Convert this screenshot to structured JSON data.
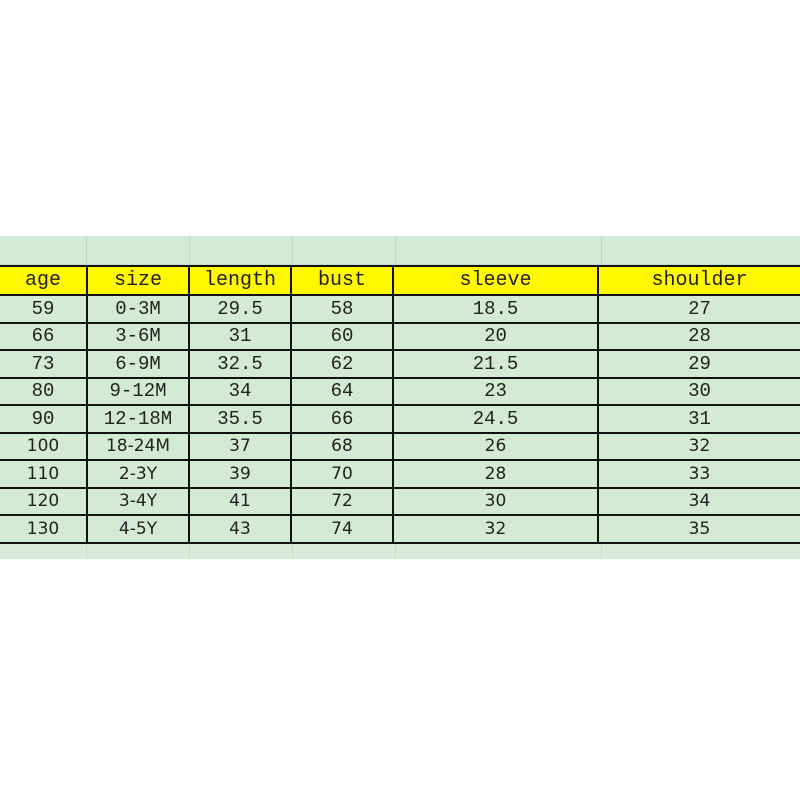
{
  "table": {
    "headers": [
      "age",
      "size",
      "length",
      "bust",
      "sleeve",
      "shoulder"
    ],
    "rows": [
      [
        "59",
        "0-3M",
        "29.5",
        "58",
        "18.5",
        "27"
      ],
      [
        "66",
        "3-6M",
        "31",
        "60",
        "20",
        "28"
      ],
      [
        "73",
        "6-9M",
        "32.5",
        "62",
        "21.5",
        "29"
      ],
      [
        "80",
        "9-12M",
        "34",
        "64",
        "23",
        "30"
      ],
      [
        "90",
        "12-18M",
        "35.5",
        "66",
        "24.5",
        "31"
      ],
      [
        "100",
        "18-24M",
        "37",
        "68",
        "26",
        "32"
      ],
      [
        "110",
        "2-3Y",
        "39",
        "70",
        "28",
        "33"
      ],
      [
        "120",
        "3-4Y",
        "41",
        "72",
        "30",
        "34"
      ],
      [
        "130",
        "4-5Y",
        "43",
        "74",
        "32",
        "35"
      ]
    ]
  },
  "colors": {
    "header_bg": "#fff800",
    "cell_bg": "#d3ead4",
    "border": "#111111"
  }
}
